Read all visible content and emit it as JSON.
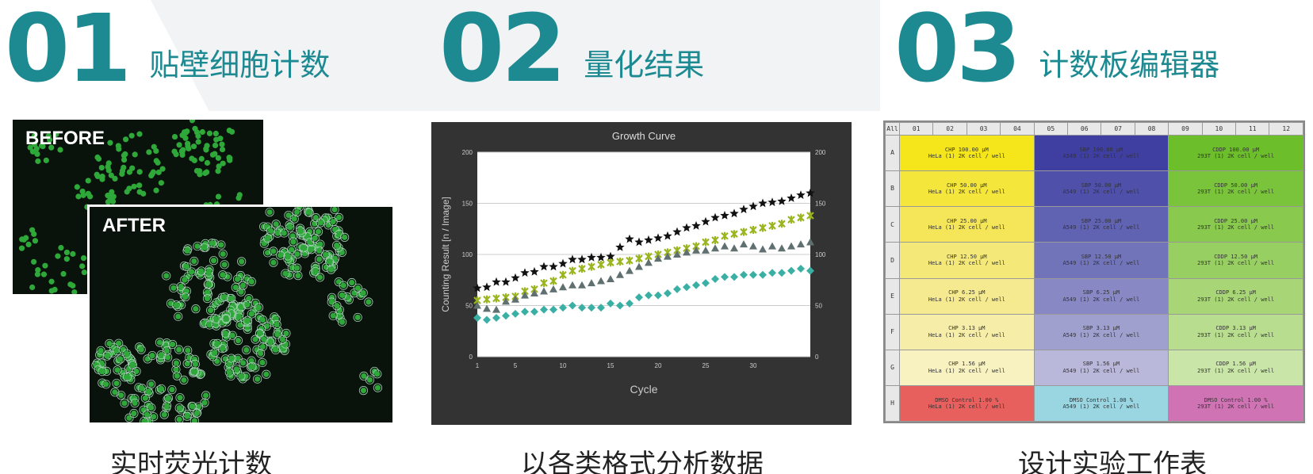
{
  "sections": [
    {
      "number": "01",
      "title": "贴壁细胞计数",
      "caption": "实时荧光计数"
    },
    {
      "number": "02",
      "title": "量化结果",
      "caption": "以各类格式分析数据"
    },
    {
      "number": "03",
      "title": "计数板编辑器",
      "caption": "设计实验工作表"
    }
  ],
  "images": {
    "before_label": "BEFORE",
    "after_label": "AFTER"
  },
  "colors": {
    "accent": "#1d8a92"
  },
  "chart_data": {
    "type": "scatter",
    "title": "Growth Curve",
    "xlabel": "Cycle",
    "ylabel": "Counting Result [n / Image]",
    "xlim": [
      1,
      36
    ],
    "ylim": [
      0,
      200
    ],
    "xticks": [
      1,
      5,
      10,
      15,
      20,
      25,
      30
    ],
    "yticks": [
      0,
      50,
      100,
      150,
      200
    ],
    "grid": true,
    "series": [
      {
        "marker": "star",
        "color": "#111111",
        "x": [
          1,
          2,
          3,
          4,
          5,
          6,
          7,
          8,
          9,
          10,
          11,
          12,
          13,
          14,
          15,
          16,
          17,
          18,
          19,
          20,
          21,
          22,
          23,
          24,
          25,
          26,
          27,
          28,
          29,
          30,
          31,
          32,
          33,
          34,
          35,
          36
        ],
        "values": [
          67,
          68,
          73,
          73,
          77,
          82,
          83,
          88,
          88,
          91,
          95,
          95,
          97,
          97,
          98,
          107,
          115,
          112,
          114,
          116,
          118,
          122,
          126,
          128,
          132,
          136,
          138,
          140,
          144,
          147,
          150,
          151,
          152,
          155,
          158,
          160
        ]
      },
      {
        "marker": "x",
        "color": "#9ab520",
        "x": [
          1,
          2,
          3,
          4,
          5,
          6,
          7,
          8,
          9,
          10,
          11,
          12,
          13,
          14,
          15,
          16,
          17,
          18,
          19,
          20,
          21,
          22,
          23,
          24,
          25,
          26,
          27,
          28,
          29,
          30,
          31,
          32,
          33,
          34,
          35,
          36
        ],
        "values": [
          55,
          56,
          57,
          58,
          59,
          64,
          66,
          72,
          74,
          80,
          84,
          86,
          88,
          90,
          92,
          93,
          94,
          96,
          98,
          100,
          102,
          104,
          106,
          108,
          112,
          114,
          118,
          120,
          122,
          124,
          126,
          128,
          130,
          134,
          136,
          138
        ]
      },
      {
        "marker": "triangle",
        "color": "#607070",
        "x": [
          1,
          2,
          3,
          4,
          5,
          6,
          7,
          8,
          9,
          10,
          11,
          12,
          13,
          14,
          15,
          16,
          17,
          18,
          19,
          20,
          21,
          22,
          23,
          24,
          25,
          26,
          27,
          28,
          29,
          30,
          31,
          32,
          33,
          34,
          35,
          36
        ],
        "values": [
          50,
          47,
          46,
          54,
          56,
          60,
          62,
          64,
          66,
          68,
          70,
          70,
          72,
          74,
          76,
          80,
          84,
          88,
          92,
          96,
          98,
          100,
          102,
          104,
          104,
          106,
          108,
          106,
          110,
          108,
          105,
          108,
          106,
          108,
          110,
          112
        ]
      },
      {
        "marker": "diamond",
        "color": "#3ab0a5",
        "x": [
          1,
          2,
          3,
          4,
          5,
          6,
          7,
          8,
          9,
          10,
          11,
          12,
          13,
          14,
          15,
          16,
          17,
          18,
          19,
          20,
          21,
          22,
          23,
          24,
          25,
          26,
          27,
          28,
          29,
          30,
          31,
          32,
          33,
          34,
          35,
          36
        ],
        "values": [
          38,
          36,
          38,
          40,
          42,
          44,
          44,
          46,
          46,
          48,
          50,
          48,
          48,
          48,
          52,
          50,
          52,
          58,
          60,
          60,
          62,
          66,
          68,
          70,
          72,
          76,
          78,
          78,
          80,
          80,
          80,
          82,
          82,
          84,
          86,
          84
        ]
      }
    ]
  },
  "plate": {
    "columns": [
      "01",
      "02",
      "03",
      "04",
      "05",
      "06",
      "07",
      "08",
      "09",
      "10",
      "11",
      "12"
    ],
    "rows": [
      "A",
      "B",
      "C",
      "D",
      "E",
      "F",
      "G",
      "H"
    ],
    "groups": [
      {
        "cols": [
          0,
          1,
          2,
          3
        ],
        "colors": [
          "#f4e61a",
          "#f4e63a",
          "#f4e658",
          "#f4e878",
          "#f5ea90",
          "#f6eda8",
          "#f8f1c0",
          "#e8605e"
        ],
        "labels": [
          "CHP 100.00 µM\nHeLa (1) 2K cell / well",
          "CHP 50.00 µM\nHeLa (1) 2K cell / well",
          "CHP 25.00 µM\nHeLa (1) 2K cell / well",
          "CHP 12.50 µM\nHeLa (1) 2K cell / well",
          "CHP 6.25 µM\nHeLa (1) 2K cell / well",
          "CHP 3.13 µM\nHeLa (1) 2K cell / well",
          "CHP 1.56 µM\nHeLa (1) 2K cell / well",
          "DMSO Control 1.00 %\nHeLa (1) 2K cell / well"
        ]
      },
      {
        "cols": [
          4,
          5,
          6,
          7
        ],
        "colors": [
          "#3e3fa0",
          "#4e50aa",
          "#6062b2",
          "#7274ba",
          "#8888c4",
          "#a0a0cf",
          "#b9b8da",
          "#9ad5e2"
        ],
        "labels": [
          "SBP 100.00 µM\nA549 (1) 2K cell / well",
          "SBP 50.00 µM\nA549 (1) 2K cell / well",
          "SBP 25.00 µM\nA549 (1) 2K cell / well",
          "SBP 12.50 µM\nA549 (1) 2K cell / well",
          "SBP 6.25 µM\nA549 (1) 2K cell / well",
          "SBP 3.13 µM\nA549 (1) 2K cell / well",
          "SBP 1.56 µM\nA549 (1) 2K cell / well",
          "DMSO Control 1.00 %\nA549 (1) 2K cell / well"
        ]
      },
      {
        "cols": [
          8,
          9,
          10,
          11
        ],
        "colors": [
          "#6cbf2a",
          "#7ac43c",
          "#88c94e",
          "#98cf62",
          "#a8d677",
          "#b8dd8e",
          "#c9e5a7",
          "#d073b5"
        ],
        "labels": [
          "CDDP 100.00 µM\n293T (1) 2K cell / well",
          "CDDP 50.00 µM\n293T (1) 2K cell / well",
          "CDDP 25.00 µM\n293T (1) 2K cell / well",
          "CDDP 12.50 µM\n293T (1) 2K cell / well",
          "CDDP 6.25 µM\n293T (1) 2K cell / well",
          "CDDP 3.13 µM\n293T (1) 2K cell / well",
          "CDDP 1.56 µM\n293T (1) 2K cell / well",
          "DMSO Control 1.00 %\n293T (1) 2K cell / well"
        ]
      }
    ]
  }
}
